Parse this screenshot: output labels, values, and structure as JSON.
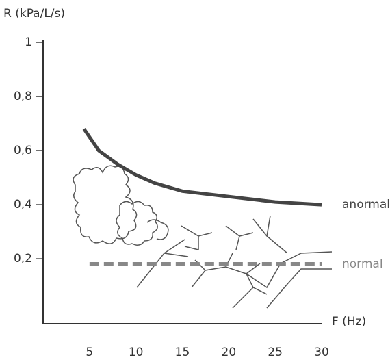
{
  "chart_data": {
    "type": "line",
    "y_label": "R (kPa/L/s)",
    "x_label": "F (Hz)",
    "xlim": [
      0,
      30
    ],
    "xticks": [
      5,
      10,
      15,
      20,
      25,
      30
    ],
    "ylim": [
      -0.04,
      1.01
    ],
    "yticks": [
      {
        "value": 0.2,
        "label": "0,2"
      },
      {
        "value": 0.4,
        "label": "0,4"
      },
      {
        "value": 0.6,
        "label": "0,6"
      },
      {
        "value": 0.8,
        "label": "0,8"
      },
      1
    ],
    "series": [
      {
        "name": "anormal",
        "color": "#444444",
        "line_style": "solid",
        "x": [
          4.4,
          5,
          6,
          8,
          10,
          12,
          15,
          20,
          25,
          30
        ],
        "values": [
          0.68,
          0.65,
          0.6,
          0.55,
          0.51,
          0.48,
          0.45,
          0.43,
          0.41,
          0.4
        ]
      },
      {
        "name": "normal",
        "color": "#888888",
        "line_style": "dashed",
        "x": [
          5,
          30
        ],
        "values": [
          0.18,
          0.18
        ]
      }
    ]
  }
}
